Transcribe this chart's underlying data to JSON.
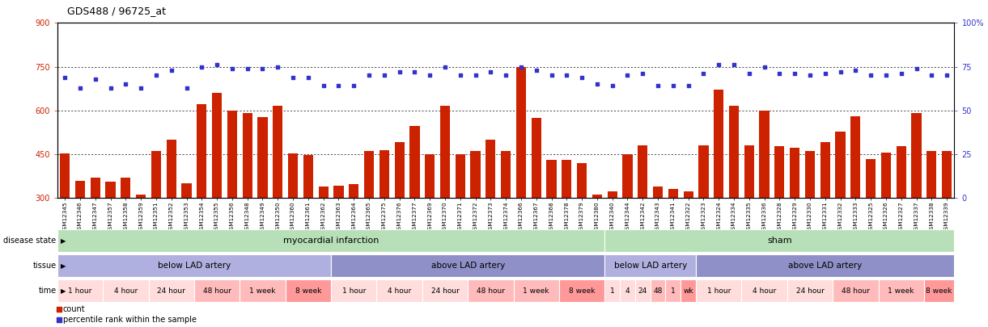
{
  "title": "GDS488 / 96725_at",
  "samples": [
    "GSM12345",
    "GSM12346",
    "GSM12347",
    "GSM12357",
    "GSM12358",
    "GSM12359",
    "GSM12351",
    "GSM12352",
    "GSM12353",
    "GSM12354",
    "GSM12355",
    "GSM12356",
    "GSM12348",
    "GSM12349",
    "GSM12350",
    "GSM12360",
    "GSM12361",
    "GSM12362",
    "GSM12363",
    "GSM12364",
    "GSM12365",
    "GSM12375",
    "GSM12376",
    "GSM12377",
    "GSM12369",
    "GSM12370",
    "GSM12371",
    "GSM12372",
    "GSM12373",
    "GSM12374",
    "GSM12366",
    "GSM12367",
    "GSM12368",
    "GSM12378",
    "GSM12379",
    "GSM12380",
    "GSM12340",
    "GSM12344",
    "GSM12342",
    "GSM12343",
    "GSM12341",
    "GSM12322",
    "GSM12323",
    "GSM12324",
    "GSM12334",
    "GSM12335",
    "GSM12336",
    "GSM12328",
    "GSM12329",
    "GSM12330",
    "GSM12331",
    "GSM12332",
    "GSM12333",
    "GSM12325",
    "GSM12326",
    "GSM12327",
    "GSM12337",
    "GSM12338",
    "GSM12339"
  ],
  "counts": [
    452,
    358,
    370,
    355,
    370,
    310,
    460,
    500,
    350,
    622,
    660,
    598,
    590,
    577,
    615,
    452,
    448,
    340,
    342,
    348,
    462,
    464,
    490,
    547,
    450,
    615,
    450,
    460,
    500,
    462,
    748,
    575,
    430,
    430,
    418,
    310,
    323,
    450,
    480,
    340,
    330,
    323,
    480,
    672,
    617,
    480,
    598,
    478,
    472,
    460,
    490,
    528,
    580,
    433,
    455,
    477,
    592,
    460,
    462
  ],
  "percentiles": [
    69,
    63,
    68,
    63,
    65,
    63,
    70,
    73,
    63,
    75,
    76,
    74,
    74,
    74,
    75,
    69,
    69,
    64,
    64,
    64,
    70,
    70,
    72,
    72,
    70,
    75,
    70,
    70,
    72,
    70,
    75,
    73,
    70,
    70,
    69,
    65,
    64,
    70,
    71,
    64,
    64,
    64,
    71,
    76,
    76,
    71,
    75,
    71,
    71,
    70,
    71,
    72,
    73,
    70,
    70,
    71,
    74,
    70,
    70
  ],
  "bar_color": "#cc2200",
  "dot_color": "#3333cc",
  "ymin": 300,
  "ymax": 900,
  "yticks_left": [
    300,
    450,
    600,
    750,
    900
  ],
  "yticks_right": [
    0,
    25,
    50,
    75,
    100
  ],
  "disease_state_groups": [
    {
      "label": "myocardial infarction",
      "start": 0,
      "end": 36,
      "color": "#b8e0b8"
    },
    {
      "label": "sham",
      "start": 36,
      "end": 59,
      "color": "#b8e0b8"
    }
  ],
  "tissue_groups": [
    {
      "label": "below LAD artery",
      "start": 0,
      "end": 18,
      "color": "#b0b0e0"
    },
    {
      "label": "above LAD artery",
      "start": 18,
      "end": 36,
      "color": "#9090c8"
    },
    {
      "label": "below LAD artery",
      "start": 36,
      "end": 42,
      "color": "#b0b0e0"
    },
    {
      "label": "above LAD artery",
      "start": 42,
      "end": 59,
      "color": "#9090c8"
    }
  ],
  "time_groups_mi_below": [
    {
      "label": "1 hour",
      "start": 0,
      "end": 3,
      "color": "#ffdddd"
    },
    {
      "label": "4 hour",
      "start": 3,
      "end": 6,
      "color": "#ffdddd"
    },
    {
      "label": "24 hour",
      "start": 6,
      "end": 9,
      "color": "#ffdddd"
    },
    {
      "label": "48 hour",
      "start": 9,
      "end": 12,
      "color": "#ffbbbb"
    },
    {
      "label": "1 week",
      "start": 12,
      "end": 15,
      "color": "#ffbbbb"
    },
    {
      "label": "8 week",
      "start": 15,
      "end": 18,
      "color": "#ff9999"
    }
  ],
  "time_groups_mi_above": [
    {
      "label": "1 hour",
      "start": 18,
      "end": 21,
      "color": "#ffdddd"
    },
    {
      "label": "4 hour",
      "start": 21,
      "end": 24,
      "color": "#ffdddd"
    },
    {
      "label": "24 hour",
      "start": 24,
      "end": 27,
      "color": "#ffdddd"
    },
    {
      "label": "48 hour",
      "start": 27,
      "end": 30,
      "color": "#ffbbbb"
    },
    {
      "label": "1 week",
      "start": 30,
      "end": 33,
      "color": "#ffbbbb"
    },
    {
      "label": "8 week",
      "start": 33,
      "end": 36,
      "color": "#ff9999"
    }
  ],
  "time_groups_sham_below": [
    {
      "label": "1",
      "start": 36,
      "end": 37,
      "color": "#ffdddd"
    },
    {
      "label": "4",
      "start": 37,
      "end": 38,
      "color": "#ffdddd"
    },
    {
      "label": "24",
      "start": 38,
      "end": 39,
      "color": "#ffdddd"
    },
    {
      "label": "48",
      "start": 39,
      "end": 40,
      "color": "#ffbbbb"
    },
    {
      "label": "1",
      "start": 40,
      "end": 41,
      "color": "#ffbbbb"
    },
    {
      "label": "wk",
      "start": 41,
      "end": 42,
      "color": "#ff9999"
    }
  ],
  "time_groups_sham_above": [
    {
      "label": "1 hour",
      "start": 42,
      "end": 45,
      "color": "#ffdddd"
    },
    {
      "label": "4 hour",
      "start": 45,
      "end": 48,
      "color": "#ffdddd"
    },
    {
      "label": "24 hour",
      "start": 48,
      "end": 51,
      "color": "#ffdddd"
    },
    {
      "label": "48 hour",
      "start": 51,
      "end": 54,
      "color": "#ffbbbb"
    },
    {
      "label": "1 week",
      "start": 54,
      "end": 57,
      "color": "#ffbbbb"
    },
    {
      "label": "8 week",
      "start": 57,
      "end": 59,
      "color": "#ff9999"
    }
  ]
}
